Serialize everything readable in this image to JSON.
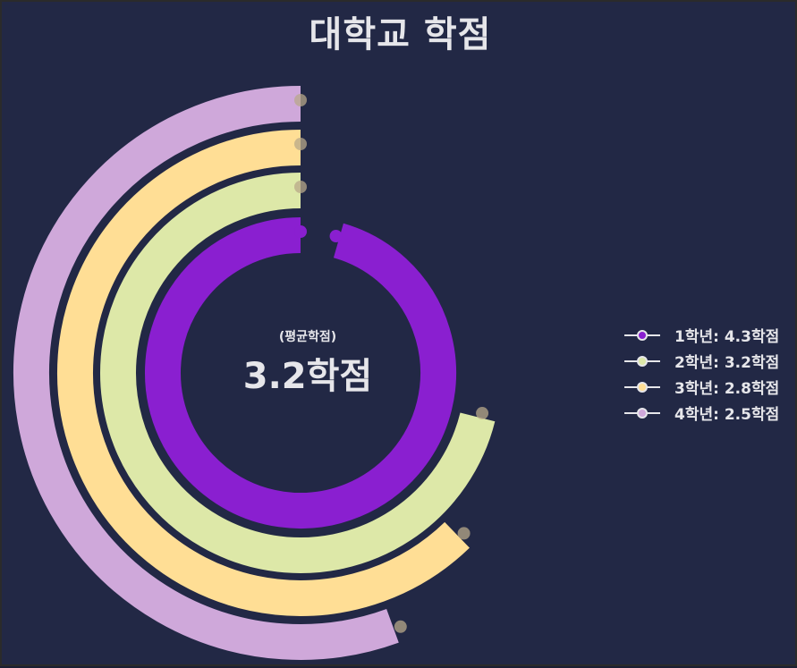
{
  "chart_data": {
    "type": "radial-bar",
    "title": "대학교 학점",
    "center_label": "(평균학점)",
    "center_value": "3.2학점",
    "max": 4.5,
    "series": [
      {
        "name": "1학년",
        "value": 4.3,
        "color": "#8a1fd0",
        "legend": "1학년: 4.3학점"
      },
      {
        "name": "2학년",
        "value": 3.2,
        "color": "#dde8a8",
        "legend": "2학년: 3.2학점"
      },
      {
        "name": "3학년",
        "value": 2.8,
        "color": "#ffde95",
        "legend": "3학년: 2.8학점"
      },
      {
        "name": "4학년",
        "value": 2.5,
        "color": "#cfa8da",
        "legend": "4학년: 2.5학점"
      }
    ],
    "legend_position": "right"
  }
}
